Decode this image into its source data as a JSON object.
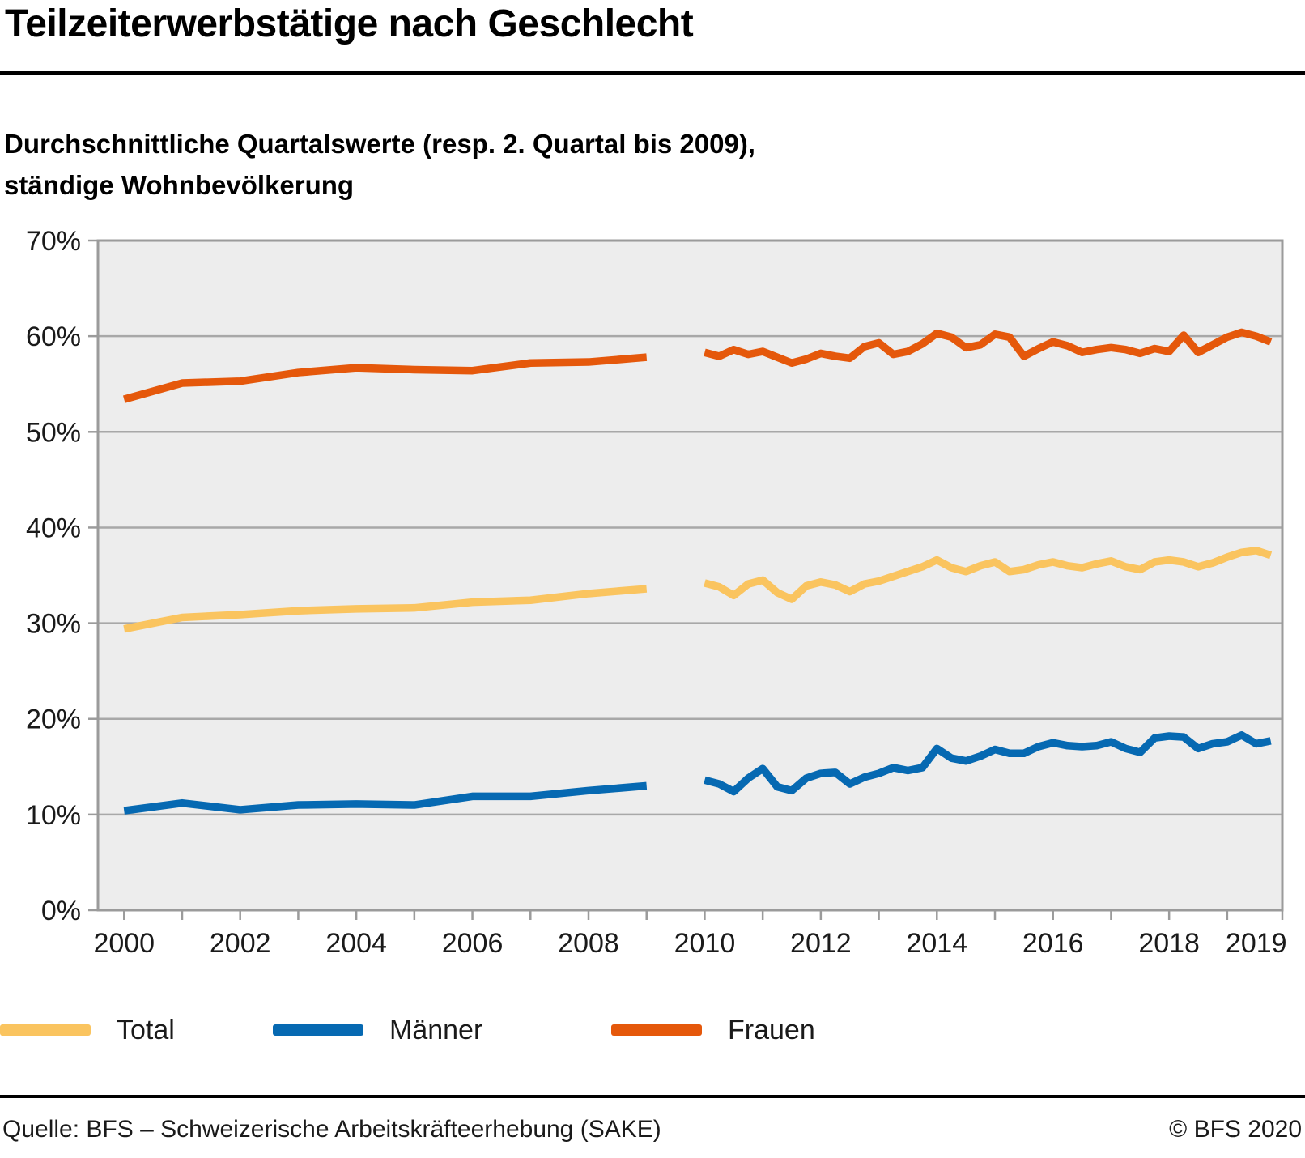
{
  "header": {
    "title": "Teilzeiterwerbstätige nach Geschlecht",
    "subtitle": "Durchschnittliche Quartalswerte (resp. 2. Quartal bis 2009),\nständige Wohnbevölkerung"
  },
  "footer": {
    "source": "Quelle: BFS – Schweizerische Arbeitskräfteerhebung (SAKE)",
    "copyright": "© BFS 2020"
  },
  "colors": {
    "plot_background": "#EDEDED",
    "gridline": "#A8A8A8",
    "frame": "#9B9B9B",
    "axis_text": "#1A1A1A"
  },
  "chart_data": {
    "type": "line",
    "title": "Teilzeiterwerbstätige nach Geschlecht",
    "xlabel": "",
    "ylabel": "",
    "ylim": [
      0,
      70
    ],
    "grid": true,
    "legend_position": "bottom",
    "yticks": [
      {
        "v": 0,
        "label": "0%"
      },
      {
        "v": 10,
        "label": "10%"
      },
      {
        "v": 20,
        "label": "20%"
      },
      {
        "v": 30,
        "label": "30%"
      },
      {
        "v": 40,
        "label": "40%"
      },
      {
        "v": 50,
        "label": "50%"
      },
      {
        "v": 60,
        "label": "60%"
      },
      {
        "v": 70,
        "label": "70%"
      }
    ],
    "xticks": [
      {
        "pos": 2000,
        "label": "2000"
      },
      {
        "pos": 2002,
        "label": "2002"
      },
      {
        "pos": 2004,
        "label": "2004"
      },
      {
        "pos": 2006,
        "label": "2006"
      },
      {
        "pos": 2008,
        "label": "2008"
      },
      {
        "pos": 2010,
        "label": "2010"
      },
      {
        "pos": 2012,
        "label": "2012"
      },
      {
        "pos": 2014,
        "label": "2014"
      },
      {
        "pos": 2016,
        "label": "2016"
      },
      {
        "pos": 2018,
        "label": "2018"
      },
      {
        "pos": 2019.5,
        "label": "2019"
      }
    ],
    "minor_year_ticks": {
      "from": 2000,
      "to": 2019,
      "step": 1
    },
    "annual_years": [
      2000,
      2001,
      2002,
      2003,
      2004,
      2005,
      2006,
      2007,
      2008,
      2009
    ],
    "quarterly_x_start": 2010.0,
    "quarterly_x_step": 0.25,
    "series": [
      {
        "name": "Total",
        "color": "#FAC45F",
        "annual": [
          29.4,
          30.6,
          30.9,
          31.3,
          31.5,
          31.6,
          32.2,
          32.4,
          33.1,
          33.6
        ],
        "quarterly": [
          34.2,
          33.8,
          32.9,
          34.1,
          34.5,
          33.2,
          32.5,
          33.9,
          34.3,
          34.0,
          33.3,
          34.1,
          34.4,
          34.9,
          35.4,
          35.9,
          36.6,
          35.8,
          35.4,
          36.0,
          36.4,
          35.4,
          35.6,
          36.1,
          36.4,
          36.0,
          35.8,
          36.2,
          36.5,
          35.9,
          35.6,
          36.4,
          36.6,
          36.4,
          35.9,
          36.3,
          36.9,
          37.4,
          37.6,
          37.1
        ]
      },
      {
        "name": "Männer",
        "color": "#0669B2",
        "annual": [
          10.4,
          11.2,
          10.5,
          11.0,
          11.1,
          11.0,
          11.9,
          11.9,
          12.5,
          13.0
        ],
        "quarterly": [
          13.6,
          13.2,
          12.4,
          13.8,
          14.8,
          12.9,
          12.5,
          13.8,
          14.3,
          14.4,
          13.2,
          13.9,
          14.3,
          14.9,
          14.6,
          14.9,
          16.9,
          15.9,
          15.6,
          16.1,
          16.8,
          16.4,
          16.4,
          17.1,
          17.5,
          17.2,
          17.1,
          17.2,
          17.6,
          16.9,
          16.5,
          18.0,
          18.2,
          18.1,
          16.9,
          17.4,
          17.6,
          18.3,
          17.4,
          17.7
        ]
      },
      {
        "name": "Frauen",
        "color": "#E5580B",
        "annual": [
          53.4,
          55.1,
          55.3,
          56.2,
          56.7,
          56.5,
          56.4,
          57.2,
          57.3,
          57.8
        ],
        "quarterly": [
          58.3,
          57.9,
          58.6,
          58.1,
          58.4,
          57.8,
          57.2,
          57.6,
          58.2,
          57.9,
          57.7,
          58.9,
          59.3,
          58.1,
          58.4,
          59.2,
          60.3,
          59.9,
          58.8,
          59.1,
          60.2,
          59.9,
          57.9,
          58.7,
          59.4,
          59.0,
          58.3,
          58.6,
          58.8,
          58.6,
          58.2,
          58.7,
          58.4,
          60.1,
          58.3,
          59.1,
          59.9,
          60.4,
          60.0,
          59.4
        ]
      }
    ]
  }
}
